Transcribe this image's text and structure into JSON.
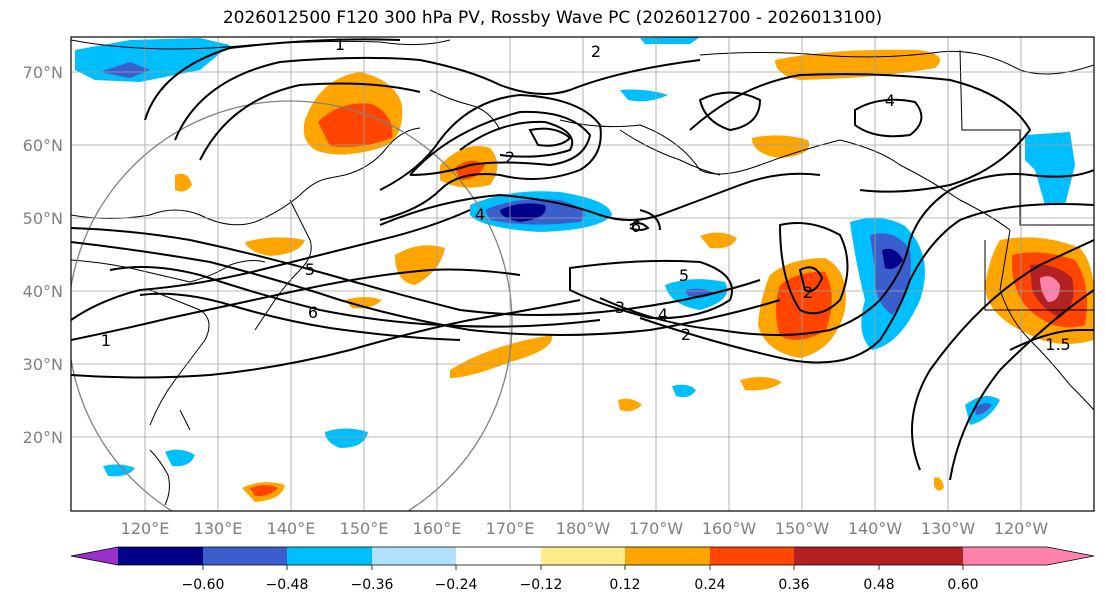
{
  "title": "2026012500 F120 300 hPa PV, Rossby Wave PC (2026012700 - 2026013100)",
  "axes": {
    "lat_labels": [
      "70°N",
      "60°N",
      "50°N",
      "40°N",
      "30°N",
      "20°N"
    ],
    "lon_labels": [
      "120°E",
      "130°E",
      "140°E",
      "150°E",
      "160°E",
      "170°E",
      "180°W",
      "170°W",
      "160°W",
      "150°W",
      "140°W",
      "130°W",
      "120°W"
    ]
  },
  "colorbar": {
    "colors": [
      "#9932cc",
      "#00008b",
      "#3a5fcd",
      "#00bfff",
      "#b0e2ff",
      "#ffffff",
      "#ffec8b",
      "#ffa500",
      "#ff4500",
      "#b22222",
      "#ff82ab"
    ],
    "ticks": [
      "−0.60",
      "−0.48",
      "−0.36",
      "−0.24",
      "−0.12",
      "0.12",
      "0.24",
      "0.36",
      "0.48",
      "0.60"
    ]
  },
  "contour_labels": [
    "1",
    "2",
    "2",
    "4",
    "6",
    "4",
    "5",
    "6",
    "3",
    "5",
    "4",
    "2",
    "2",
    "1",
    "1.5"
  ]
}
